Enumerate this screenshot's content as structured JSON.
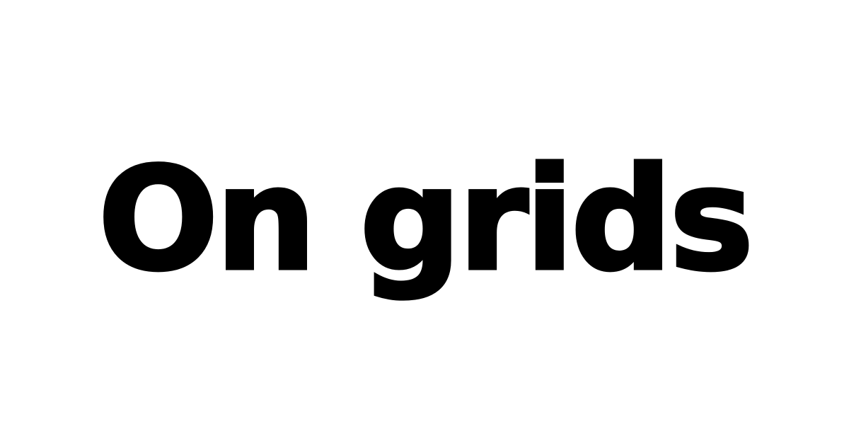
{
  "title": "On grids",
  "colors": {
    "background": "#ffffff",
    "text": "#000000"
  }
}
